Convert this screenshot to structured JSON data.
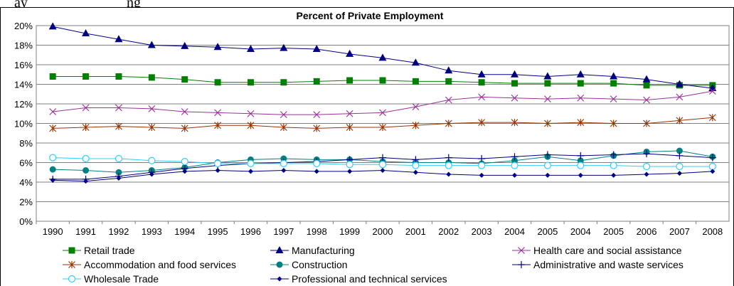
{
  "caption_fragment": "ay",
  "caption_fragment_2": "ng",
  "chart_data": {
    "type": "line",
    "title": "Percent of Private Employment",
    "xlabel": "",
    "ylabel": "",
    "categories": [
      "1990",
      "1991",
      "1992",
      "1993",
      "1994",
      "1995",
      "1996",
      "1997",
      "1998",
      "1999",
      "2000",
      "2001",
      "2002",
      "2003",
      "2004",
      "2005",
      "2004",
      "2005",
      "2006",
      "2007",
      "2008"
    ],
    "yticks": [
      "0%",
      "2%",
      "4%",
      "6%",
      "8%",
      "10%",
      "12%",
      "14%",
      "16%",
      "18%",
      "20%"
    ],
    "ylim": [
      0,
      20
    ],
    "grid": "horizontal",
    "legend_position": "bottom",
    "series": [
      {
        "name": "Retail trade",
        "color": "#008000",
        "marker": "square",
        "values": [
          14.8,
          14.8,
          14.8,
          14.7,
          14.5,
          14.2,
          14.2,
          14.2,
          14.3,
          14.4,
          14.4,
          14.3,
          14.3,
          14.2,
          14.1,
          14.1,
          14.1,
          14.1,
          13.9,
          13.9,
          13.9
        ]
      },
      {
        "name": "Manufacturing",
        "color": "#000080",
        "marker": "triangle",
        "values": [
          19.9,
          19.2,
          18.6,
          18.0,
          17.9,
          17.8,
          17.6,
          17.7,
          17.6,
          17.1,
          16.7,
          16.2,
          15.4,
          15.0,
          15.0,
          14.8,
          15.0,
          14.8,
          14.5,
          14.0,
          13.6
        ]
      },
      {
        "name": "Health care and social assistance",
        "color": "#993399",
        "marker": "x",
        "values": [
          11.2,
          11.6,
          11.6,
          11.5,
          11.2,
          11.1,
          11.0,
          10.9,
          10.9,
          11.0,
          11.1,
          11.7,
          12.4,
          12.7,
          12.6,
          12.5,
          12.6,
          12.5,
          12.4,
          12.7,
          13.3
        ]
      },
      {
        "name": "Accommodation and food services",
        "color": "#993300",
        "marker": "asterisk",
        "values": [
          9.5,
          9.6,
          9.7,
          9.6,
          9.5,
          9.8,
          9.8,
          9.6,
          9.5,
          9.6,
          9.6,
          9.8,
          10.0,
          10.1,
          10.1,
          10.0,
          10.1,
          10.0,
          10.0,
          10.3,
          10.6
        ]
      },
      {
        "name": "Construction",
        "color": "#008080",
        "marker": "circle-filled",
        "values": [
          5.3,
          5.2,
          5.0,
          5.2,
          5.5,
          6.0,
          6.3,
          6.4,
          6.3,
          6.3,
          6.1,
          6.0,
          6.0,
          5.9,
          6.2,
          6.6,
          6.2,
          6.7,
          7.1,
          7.2,
          6.6
        ]
      },
      {
        "name": "Administrative and waste services",
        "color": "#000080",
        "marker": "plus",
        "values": [
          4.3,
          4.3,
          4.6,
          5.0,
          5.4,
          5.7,
          5.9,
          6.0,
          6.1,
          6.3,
          6.5,
          6.3,
          6.5,
          6.4,
          6.6,
          6.8,
          6.7,
          6.8,
          6.9,
          6.7,
          6.5
        ]
      },
      {
        "name": "Wholesale Trade",
        "color": "#33CCFF",
        "marker": "circle-open",
        "values": [
          6.5,
          6.4,
          6.4,
          6.2,
          6.1,
          5.9,
          5.9,
          5.9,
          5.9,
          5.8,
          5.8,
          5.7,
          5.7,
          5.7,
          5.7,
          5.7,
          5.7,
          5.7,
          5.6,
          5.6,
          5.6
        ]
      },
      {
        "name": "Professional and technical services",
        "color": "#000080",
        "marker": "diamond",
        "values": [
          4.2,
          4.1,
          4.4,
          4.8,
          5.1,
          5.2,
          5.1,
          5.2,
          5.1,
          5.1,
          5.2,
          5.0,
          4.8,
          4.7,
          4.7,
          4.7,
          4.7,
          4.7,
          4.8,
          4.9,
          5.1
        ]
      }
    ]
  }
}
